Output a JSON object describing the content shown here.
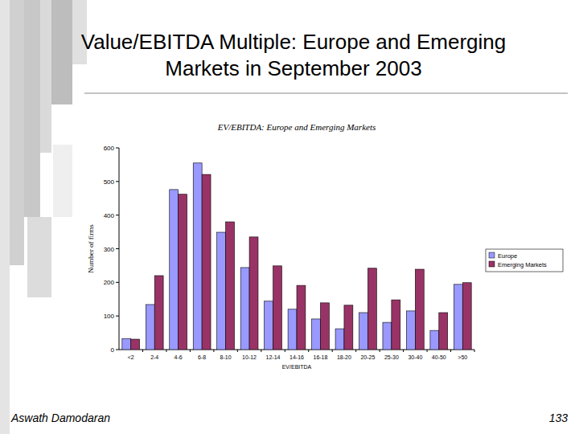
{
  "slide": {
    "title": "Value/EBITDA Multiple: Europe and Emerging Markets in September 2003",
    "footer": "Aswath Damodaran",
    "page": "133"
  },
  "chart_data": {
    "type": "bar",
    "title": "EV/EBITDA: Europe and Emerging Markets",
    "x_label": "EV/EBITDA",
    "y_label": "Number of firms",
    "categories": [
      "<2",
      "2-4",
      "4-6",
      "6-8",
      "8-10",
      "10-12",
      "12-14",
      "14-16",
      "16-18",
      "18-20",
      "20-25",
      "25-30",
      "30-40",
      "40-50",
      ">50"
    ],
    "series": [
      {
        "name": "Europe",
        "color": "#9999ff",
        "values": [
          33,
          134,
          476,
          555,
          349,
          244,
          144,
          120,
          91,
          62,
          110,
          81,
          115,
          57,
          194
        ]
      },
      {
        "name": "Emerging Markets",
        "color": "#993366",
        "values": [
          31,
          220,
          462,
          521,
          380,
          335,
          249,
          191,
          139,
          132,
          242,
          148,
          239,
          110,
          199
        ]
      }
    ],
    "ylim": [
      0,
      600
    ],
    "yticks": [
      0,
      100,
      200,
      300,
      400,
      500,
      600
    ],
    "grid": false,
    "legend": "right"
  }
}
